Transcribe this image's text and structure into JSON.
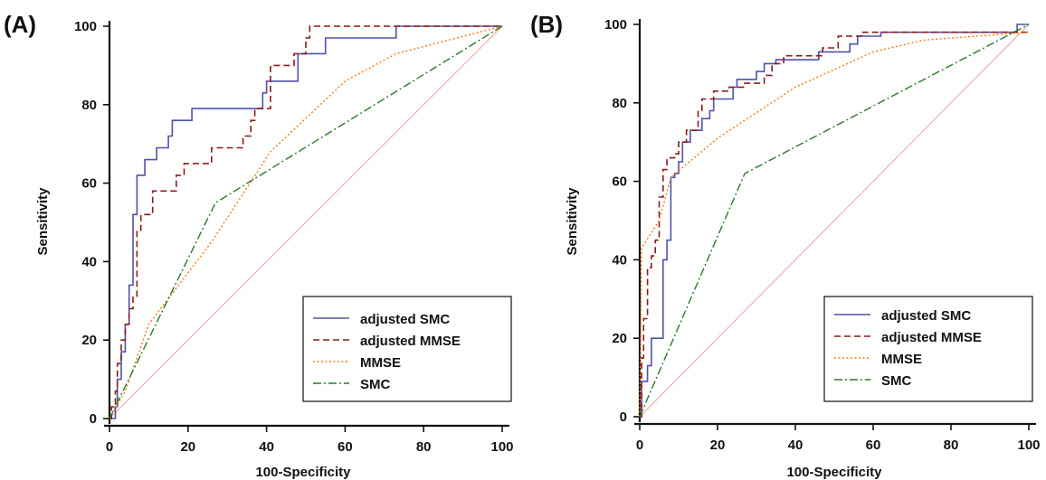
{
  "colors": {
    "adjusted_smc": "#5052a8",
    "adjusted_mmse": "#8b1a1a",
    "mmse": "#f47a0e",
    "smc": "#2a7a2a",
    "reference": "#e99a9a",
    "axis": "#111111"
  },
  "chart_data": [
    {
      "panel_label": "(A)",
      "type": "line",
      "xlabel": "100-Specificity",
      "ylabel": "Sensitivity",
      "xlim": [
        0,
        100
      ],
      "ylim": [
        0,
        100
      ],
      "xticks": [
        "0",
        "20",
        "40",
        "60",
        "80",
        "100"
      ],
      "yticks": [
        "0",
        "20",
        "40",
        "60",
        "80",
        "100"
      ],
      "grid": false,
      "legend_position": "bottom-right",
      "series": [
        {
          "name": "adjusted SMC",
          "style": "solid",
          "color_key": "adjusted_smc",
          "points": [
            [
              0,
              0
            ],
            [
              1.5,
              0
            ],
            [
              1.5,
              3
            ],
            [
              2,
              3
            ],
            [
              2,
              10
            ],
            [
              3,
              10
            ],
            [
              3,
              17
            ],
            [
              4,
              17
            ],
            [
              4,
              24
            ],
            [
              5,
              24
            ],
            [
              5,
              34
            ],
            [
              6,
              34
            ],
            [
              6,
              52
            ],
            [
              7,
              52
            ],
            [
              7,
              62
            ],
            [
              9,
              62
            ],
            [
              9,
              66
            ],
            [
              12,
              66
            ],
            [
              12,
              69
            ],
            [
              15,
              69
            ],
            [
              15,
              72
            ],
            [
              16,
              72
            ],
            [
              16,
              76
            ],
            [
              21,
              76
            ],
            [
              21,
              79
            ],
            [
              39,
              79
            ],
            [
              39,
              83
            ],
            [
              40,
              83
            ],
            [
              40,
              86
            ],
            [
              48,
              86
            ],
            [
              48,
              93
            ],
            [
              55,
              93
            ],
            [
              55,
              97
            ],
            [
              73,
              97
            ],
            [
              73,
              100
            ],
            [
              100,
              100
            ]
          ]
        },
        {
          "name": "adjusted MMSE",
          "style": "dashed",
          "color_key": "adjusted_mmse",
          "points": [
            [
              0,
              0
            ],
            [
              0.5,
              0
            ],
            [
              0.5,
              3
            ],
            [
              1.5,
              3
            ],
            [
              1.5,
              7
            ],
            [
              2,
              7
            ],
            [
              2,
              14
            ],
            [
              3,
              14
            ],
            [
              3,
              20
            ],
            [
              4,
              20
            ],
            [
              4,
              24
            ],
            [
              5,
              24
            ],
            [
              5,
              28
            ],
            [
              6,
              28
            ],
            [
              6,
              31
            ],
            [
              7,
              31
            ],
            [
              7,
              48
            ],
            [
              8,
              48
            ],
            [
              8,
              52
            ],
            [
              11,
              52
            ],
            [
              11,
              58
            ],
            [
              17,
              58
            ],
            [
              17,
              62
            ],
            [
              19,
              62
            ],
            [
              19,
              65
            ],
            [
              26,
              65
            ],
            [
              26,
              69
            ],
            [
              34,
              69
            ],
            [
              34,
              72
            ],
            [
              36,
              72
            ],
            [
              36,
              76
            ],
            [
              37,
              76
            ],
            [
              37,
              79
            ],
            [
              41,
              79
            ],
            [
              41,
              90
            ],
            [
              47,
              90
            ],
            [
              47,
              93
            ],
            [
              50,
              93
            ],
            [
              50,
              97
            ],
            [
              51,
              97
            ],
            [
              51,
              100
            ],
            [
              100,
              100
            ]
          ]
        },
        {
          "name": "MMSE",
          "style": "dotted",
          "color_key": "mmse",
          "points": [
            [
              0,
              0
            ],
            [
              4,
              7
            ],
            [
              10,
              24
            ],
            [
              26,
              45
            ],
            [
              41,
              68
            ],
            [
              60,
              86
            ],
            [
              73,
              93
            ],
            [
              100,
              100
            ]
          ]
        },
        {
          "name": "SMC",
          "style": "dashdot",
          "color_key": "smc",
          "points": [
            [
              0,
              0
            ],
            [
              27,
              55
            ],
            [
              100,
              100
            ]
          ]
        }
      ]
    },
    {
      "panel_label": "(B)",
      "type": "line",
      "xlabel": "100-Specificity",
      "ylabel": "Sensitivity",
      "xlim": [
        0,
        100
      ],
      "ylim": [
        0,
        100
      ],
      "xticks": [
        "0",
        "20",
        "40",
        "60",
        "80",
        "100"
      ],
      "yticks": [
        "0",
        "20",
        "40",
        "60",
        "80",
        "100"
      ],
      "grid": false,
      "legend_position": "bottom-right",
      "series": [
        {
          "name": "adjusted SMC",
          "style": "solid",
          "color_key": "adjusted_smc",
          "points": [
            [
              0,
              0
            ],
            [
              0.5,
              0
            ],
            [
              0.5,
              9
            ],
            [
              2,
              9
            ],
            [
              2,
              13
            ],
            [
              3,
              13
            ],
            [
              3,
              20
            ],
            [
              6,
              20
            ],
            [
              6,
              40
            ],
            [
              7,
              40
            ],
            [
              7,
              45
            ],
            [
              8,
              45
            ],
            [
              8,
              61
            ],
            [
              9,
              61
            ],
            [
              9,
              62
            ],
            [
              10,
              62
            ],
            [
              10,
              65
            ],
            [
              11,
              65
            ],
            [
              11,
              70
            ],
            [
              13,
              70
            ],
            [
              13,
              73
            ],
            [
              16,
              73
            ],
            [
              16,
              76
            ],
            [
              18,
              76
            ],
            [
              18,
              78
            ],
            [
              19,
              78
            ],
            [
              19,
              81
            ],
            [
              24,
              81
            ],
            [
              24,
              84
            ],
            [
              25,
              84
            ],
            [
              25,
              86
            ],
            [
              30,
              86
            ],
            [
              30,
              88
            ],
            [
              32,
              88
            ],
            [
              32,
              90
            ],
            [
              35,
              90
            ],
            [
              35,
              91
            ],
            [
              46,
              91
            ],
            [
              46,
              93
            ],
            [
              54,
              93
            ],
            [
              54,
              95
            ],
            [
              56,
              95
            ],
            [
              56,
              97
            ],
            [
              62,
              97
            ],
            [
              62,
              98
            ],
            [
              97,
              98
            ],
            [
              97,
              100
            ],
            [
              100,
              100
            ]
          ]
        },
        {
          "name": "adjusted MMSE",
          "style": "dashed",
          "color_key": "adjusted_mmse",
          "points": [
            [
              0,
              0
            ],
            [
              0.5,
              0
            ],
            [
              0.5,
              15
            ],
            [
              1,
              15
            ],
            [
              1,
              25
            ],
            [
              2,
              25
            ],
            [
              2,
              38
            ],
            [
              3,
              38
            ],
            [
              3,
              41
            ],
            [
              4,
              41
            ],
            [
              4,
              45
            ],
            [
              5,
              45
            ],
            [
              5,
              56
            ],
            [
              6,
              56
            ],
            [
              6,
              63
            ],
            [
              7,
              63
            ],
            [
              7,
              66
            ],
            [
              9,
              66
            ],
            [
              9,
              67
            ],
            [
              10,
              67
            ],
            [
              10,
              70
            ],
            [
              12,
              70
            ],
            [
              12,
              73
            ],
            [
              15,
              73
            ],
            [
              15,
              78
            ],
            [
              16,
              78
            ],
            [
              16,
              81
            ],
            [
              19,
              81
            ],
            [
              19,
              83
            ],
            [
              23,
              83
            ],
            [
              23,
              84
            ],
            [
              27,
              84
            ],
            [
              27,
              85
            ],
            [
              32,
              85
            ],
            [
              32,
              87
            ],
            [
              34,
              87
            ],
            [
              34,
              90
            ],
            [
              37,
              90
            ],
            [
              37,
              92
            ],
            [
              47,
              92
            ],
            [
              47,
              94
            ],
            [
              51,
              94
            ],
            [
              51,
              97
            ],
            [
              57,
              97
            ],
            [
              57,
              98
            ],
            [
              100,
              98
            ]
          ]
        },
        {
          "name": "MMSE",
          "style": "dotted",
          "color_key": "mmse",
          "points": [
            [
              0,
              0
            ],
            [
              0.5,
              43
            ],
            [
              5,
              50
            ],
            [
              8,
              61
            ],
            [
              20,
              71
            ],
            [
              40,
              84
            ],
            [
              60,
              93
            ],
            [
              73,
              96
            ],
            [
              100,
              98
            ]
          ]
        },
        {
          "name": "SMC",
          "style": "dashdot",
          "color_key": "smc",
          "points": [
            [
              0,
              0
            ],
            [
              27,
              62
            ],
            [
              100,
              100
            ]
          ]
        }
      ]
    }
  ]
}
